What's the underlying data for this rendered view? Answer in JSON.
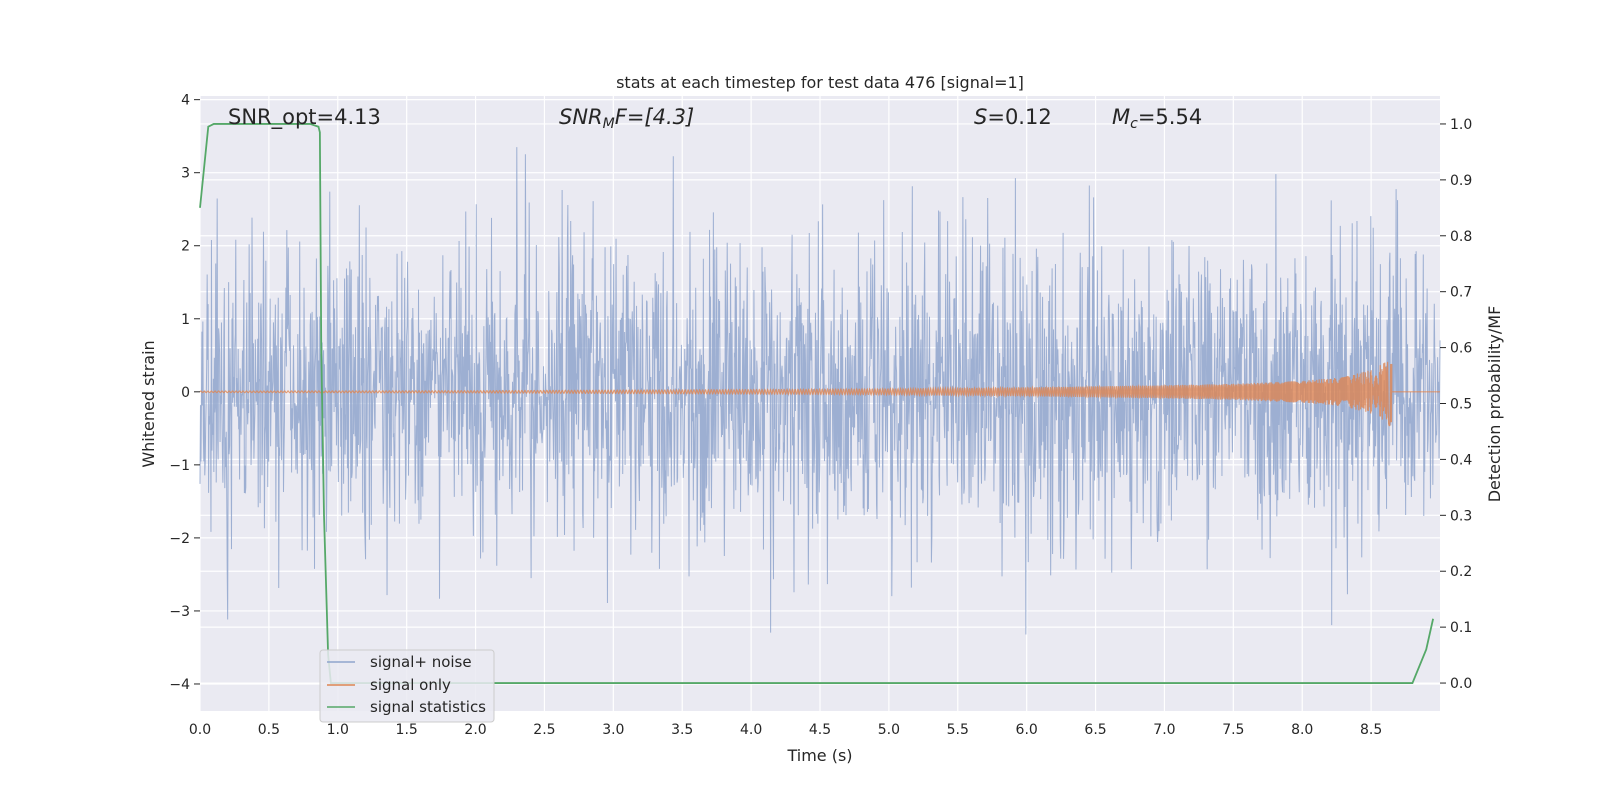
{
  "chart_data": {
    "type": "line",
    "title": "stats at each timestep for test data 476 [signal=1]",
    "xlabel": "Time (s)",
    "ylabel_left": "Whitened strain",
    "ylabel_right": "Detection probability/MF",
    "xlim": [
      0.0,
      9.0
    ],
    "ylim_left": [
      -4.37,
      4.05
    ],
    "ylim_right": [
      -0.05,
      1.05
    ],
    "x_ticks": [
      0.0,
      0.5,
      1.0,
      1.5,
      2.0,
      2.5,
      3.0,
      3.5,
      4.0,
      4.5,
      5.0,
      5.5,
      6.0,
      6.5,
      7.0,
      7.5,
      8.0,
      8.5
    ],
    "x_tick_labels": [
      "0.0",
      "0.5",
      "1.0",
      "1.5",
      "2.0",
      "2.5",
      "3.0",
      "3.5",
      "4.0",
      "4.5",
      "5.0",
      "5.5",
      "6.0",
      "6.5",
      "7.0",
      "7.5",
      "8.0",
      "8.5"
    ],
    "y_ticks_left": [
      4,
      3,
      2,
      1,
      0,
      -1,
      -2,
      -3,
      -4
    ],
    "y_tick_labels_left": [
      "4",
      "3",
      "2",
      "1",
      "0",
      "−1",
      "−2",
      "−3",
      "−4"
    ],
    "y_ticks_right": [
      1.0,
      0.9,
      0.8,
      0.7,
      0.6,
      0.5,
      0.4,
      0.3,
      0.2,
      0.1,
      0.0
    ],
    "y_tick_labels_right": [
      "1.0",
      "0.9",
      "0.8",
      "0.7",
      "0.6",
      "0.5",
      "0.4",
      "0.3",
      "0.2",
      "0.1",
      "0.0"
    ],
    "grid": true,
    "legend_position": "lower-left",
    "annotations": {
      "snr_opt": "SNR_opt=4.13",
      "snr_mf_main": "SNR",
      "snr_mf_sub": "M",
      "snr_mf_rest": "F=[4.3]",
      "s_main": "S",
      "s_rest": "=0.12",
      "mc_main": "M",
      "mc_sub": "c",
      "mc_rest": "=5.54"
    },
    "series": [
      {
        "name": "signal+ noise",
        "axis": "left",
        "color": "#8fa4cc",
        "kind": "noise",
        "duration": 9.0,
        "amplitude_std": 1.0,
        "typical_peak": 3.5
      },
      {
        "name": "signal only",
        "axis": "left",
        "color": "#dd8452",
        "kind": "chirp",
        "start_time": 0.0,
        "merger_time": 8.65,
        "x": [
          0.0,
          2.0,
          4.0,
          5.0,
          6.0,
          7.0,
          7.5,
          8.0,
          8.3,
          8.5,
          8.6,
          8.65
        ],
        "envelope": [
          0.01,
          0.015,
          0.03,
          0.04,
          0.06,
          0.09,
          0.11,
          0.15,
          0.2,
          0.3,
          0.4,
          0.5
        ]
      },
      {
        "name": "signal statistics",
        "axis": "right",
        "color": "#55a868",
        "x": [
          0.0,
          0.06,
          0.1,
          0.2,
          0.3,
          0.5,
          0.7,
          0.8,
          0.86,
          0.87,
          0.88,
          0.9,
          0.93,
          0.95,
          1.0,
          3.0,
          6.0,
          8.8,
          8.9,
          8.95
        ],
        "values": [
          0.85,
          0.995,
          1.0,
          1.0,
          1.0,
          1.0,
          1.0,
          1.0,
          0.995,
          0.985,
          0.6,
          0.3,
          0.05,
          0.0,
          0.0,
          0.0,
          0.0,
          0.0,
          0.06,
          0.115
        ]
      }
    ]
  }
}
